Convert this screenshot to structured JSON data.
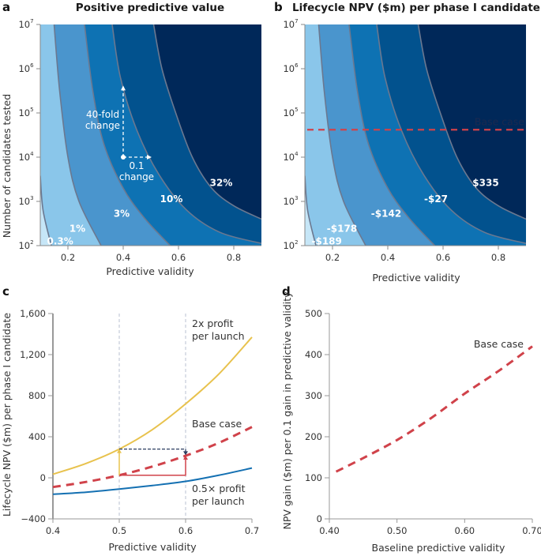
{
  "figure": {
    "panels": [
      {
        "letter": "a",
        "title": "Positive predictive value"
      },
      {
        "letter": "b",
        "title": "Lifecycle NPV ($m) per phase I candidate"
      },
      {
        "letter": "c",
        "title": ""
      },
      {
        "letter": "d",
        "title": ""
      }
    ]
  },
  "colors": {
    "band0": "#c6e6f7",
    "band1": "#8ac6ea",
    "band2": "#4a95cd",
    "band3": "#0e72b3",
    "band4": "#02528e",
    "band5": "#002859",
    "contour_line": "#6b7890",
    "base_case_red": "#d0424a",
    "two_x_yellow": "#e8c24d",
    "half_x_blue": "#1470b2",
    "nav_dashed": "#2c3e60",
    "guide": "#b8c0d0"
  },
  "chart_data": [
    {
      "panel": "a",
      "type": "heatmap",
      "title": "Positive predictive value",
      "xlabel": "Predictive validity",
      "ylabel": "Number of candidates tested",
      "xlim": [
        0.1,
        0.9
      ],
      "ylim_log10": [
        2,
        7
      ],
      "xticks": [
        "0.2",
        "0.4",
        "0.6",
        "0.8"
      ],
      "xtick_values": [
        0.2,
        0.4,
        0.6,
        0.8
      ],
      "yticks": [
        "10",
        "10",
        "10",
        "10",
        "10",
        "10"
      ],
      "ytick_exponents": [
        "2",
        "3",
        "4",
        "5",
        "6",
        "7"
      ],
      "contour_labels": [
        "0.3%",
        "1%",
        "3%",
        "10%",
        "32%"
      ],
      "contour_label_positions": [
        [
          0.13,
          2.1
        ],
        [
          0.24,
          2.38
        ],
        [
          0.4,
          2.72
        ],
        [
          0.58,
          3.05
        ],
        [
          0.76,
          3.42
        ]
      ],
      "contours": [
        {
          "label": "0.3%",
          "points": [
            [
              0.1,
              3.58
            ],
            [
              0.11,
              2.8
            ],
            [
              0.14,
              2.0
            ]
          ]
        },
        {
          "label": "1%",
          "points": [
            [
              0.15,
              7.0
            ],
            [
              0.17,
              5.5
            ],
            [
              0.2,
              4.0
            ],
            [
              0.24,
              3.0
            ],
            [
              0.32,
              2.0
            ]
          ]
        },
        {
          "label": "3%",
          "points": [
            [
              0.26,
              7.0
            ],
            [
              0.29,
              5.5
            ],
            [
              0.33,
              4.3
            ],
            [
              0.4,
              3.3
            ],
            [
              0.48,
              2.6
            ],
            [
              0.57,
              2.0
            ]
          ]
        },
        {
          "label": "10%",
          "points": [
            [
              0.36,
              7.0
            ],
            [
              0.39,
              5.8
            ],
            [
              0.45,
              4.6
            ],
            [
              0.53,
              3.6
            ],
            [
              0.63,
              2.8
            ],
            [
              0.75,
              2.3
            ],
            [
              0.9,
              2.05
            ]
          ]
        },
        {
          "label": "32%",
          "points": [
            [
              0.51,
              7.0
            ],
            [
              0.54,
              6.0
            ],
            [
              0.59,
              5.0
            ],
            [
              0.65,
              4.0
            ],
            [
              0.72,
              3.3
            ],
            [
              0.8,
              2.9
            ],
            [
              0.9,
              2.6
            ]
          ]
        }
      ],
      "annotations": {
        "vertical_arrow_label": [
          "40-fold",
          "change"
        ],
        "horizontal_arrow_label": [
          "0.1",
          "change"
        ],
        "origin": [
          0.4,
          4.0
        ],
        "vertical_arrow_end": [
          0.4,
          5.6
        ],
        "horizontal_arrow_end": [
          0.5,
          4.0
        ]
      }
    },
    {
      "panel": "b",
      "type": "heatmap",
      "title": "Lifecycle NPV ($m) per phase I candidate",
      "xlabel": "Predictive validity",
      "ylabel": "",
      "xlim": [
        0.1,
        0.9
      ],
      "ylim_log10": [
        2,
        7
      ],
      "xticks": [
        "0.2",
        "0.4",
        "0.6",
        "0.8"
      ],
      "xtick_values": [
        0.2,
        0.4,
        0.6,
        0.8
      ],
      "yticks": [
        "10",
        "10",
        "10",
        "10",
        "10",
        "10"
      ],
      "ytick_exponents": [
        "2",
        "3",
        "4",
        "5",
        "6",
        "7"
      ],
      "contour_labels": [
        "-$189",
        "-$178",
        "-$142",
        "-$27",
        "$335"
      ],
      "contour_label_positions": [
        [
          0.13,
          2.1
        ],
        [
          0.24,
          2.38
        ],
        [
          0.4,
          2.72
        ],
        [
          0.58,
          3.05
        ],
        [
          0.76,
          3.42
        ]
      ],
      "contours": [
        {
          "label": "-$189",
          "points": [
            [
              0.1,
              3.58
            ],
            [
              0.11,
              2.8
            ],
            [
              0.14,
              2.0
            ]
          ]
        },
        {
          "label": "-$178",
          "points": [
            [
              0.15,
              7.0
            ],
            [
              0.17,
              5.5
            ],
            [
              0.2,
              4.0
            ],
            [
              0.24,
              3.0
            ],
            [
              0.32,
              2.0
            ]
          ]
        },
        {
          "label": "-$142",
          "points": [
            [
              0.26,
              7.0
            ],
            [
              0.29,
              5.5
            ],
            [
              0.33,
              4.3
            ],
            [
              0.4,
              3.3
            ],
            [
              0.48,
              2.6
            ],
            [
              0.57,
              2.0
            ]
          ]
        },
        {
          "label": "-$27",
          "points": [
            [
              0.36,
              7.0
            ],
            [
              0.39,
              5.8
            ],
            [
              0.45,
              4.6
            ],
            [
              0.53,
              3.6
            ],
            [
              0.63,
              2.8
            ],
            [
              0.75,
              2.3
            ],
            [
              0.9,
              2.05
            ]
          ]
        },
        {
          "label": "$335",
          "points": [
            [
              0.51,
              7.0
            ],
            [
              0.54,
              6.0
            ],
            [
              0.59,
              5.0
            ],
            [
              0.65,
              4.0
            ],
            [
              0.72,
              3.3
            ],
            [
              0.8,
              2.9
            ],
            [
              0.9,
              2.6
            ]
          ]
        }
      ],
      "base_case": {
        "label": "Base case",
        "log10_y": 4.62
      }
    },
    {
      "panel": "c",
      "type": "line",
      "title": "",
      "xlabel": "Predictive validity",
      "ylabel": "Lifecycle NPV ($m) per phase I candidate",
      "xlim": [
        0.4,
        0.7
      ],
      "ylim": [
        -400,
        1600
      ],
      "xticks": [
        "0.4",
        "0.5",
        "0.6",
        "0.7"
      ],
      "xtick_values": [
        0.4,
        0.5,
        0.6,
        0.7
      ],
      "yticks": [
        "−400",
        "0",
        "400",
        "800",
        "1,200",
        "1,600"
      ],
      "ytick_values": [
        -400,
        0,
        400,
        800,
        1200,
        1600
      ],
      "x": [
        0.4,
        0.45,
        0.5,
        0.55,
        0.6,
        0.65,
        0.7
      ],
      "series": [
        {
          "name": "2x profit per launch",
          "label_lines": [
            "2x profit",
            "per launch"
          ],
          "style": "solid",
          "values": [
            35,
            140,
            280,
            470,
            720,
            1010,
            1370
          ]
        },
        {
          "name": "Base case",
          "label_lines": [
            "Base case"
          ],
          "style": "dashed",
          "values": [
            -90,
            -40,
            25,
            110,
            215,
            340,
            495
          ]
        },
        {
          "name": "0.5× profit per launch",
          "label_lines": [
            "0.5× profit",
            "per launch"
          ],
          "style": "solid",
          "values": [
            -160,
            -140,
            -110,
            -75,
            -35,
            25,
            95
          ]
        }
      ],
      "guides_x": [
        0.5,
        0.6
      ],
      "arrows": {
        "base_step": {
          "from": [
            0.5,
            25
          ],
          "corner": [
            0.6,
            25
          ],
          "to": [
            0.6,
            215
          ]
        },
        "yellow_up": {
          "from": [
            0.5,
            25
          ],
          "to": [
            0.5,
            280
          ]
        },
        "navy_across": {
          "from": [
            0.5,
            280
          ],
          "corner": [
            0.6,
            280
          ],
          "to": [
            0.6,
            220
          ]
        }
      }
    },
    {
      "panel": "d",
      "type": "line",
      "title": "",
      "xlabel": "Baseline predictive validity",
      "ylabel": "NPV gain ($m) per 0.1 gain in predictive validity",
      "xlim": [
        0.4,
        0.7
      ],
      "ylim": [
        0,
        500
      ],
      "xticks": [
        "0.40",
        "0.50",
        "0.60",
        "0.70"
      ],
      "xtick_values": [
        0.4,
        0.5,
        0.6,
        0.7
      ],
      "yticks": [
        "0",
        "100",
        "200",
        "300",
        "400",
        "500"
      ],
      "ytick_values": [
        0,
        100,
        200,
        300,
        400,
        500
      ],
      "x": [
        0.41,
        0.45,
        0.5,
        0.55,
        0.6,
        0.65,
        0.7
      ],
      "series": [
        {
          "name": "Base case",
          "label_lines": [
            "Base case"
          ],
          "style": "dashed",
          "values": [
            115,
            148,
            192,
            245,
            305,
            360,
            420
          ]
        }
      ]
    }
  ]
}
